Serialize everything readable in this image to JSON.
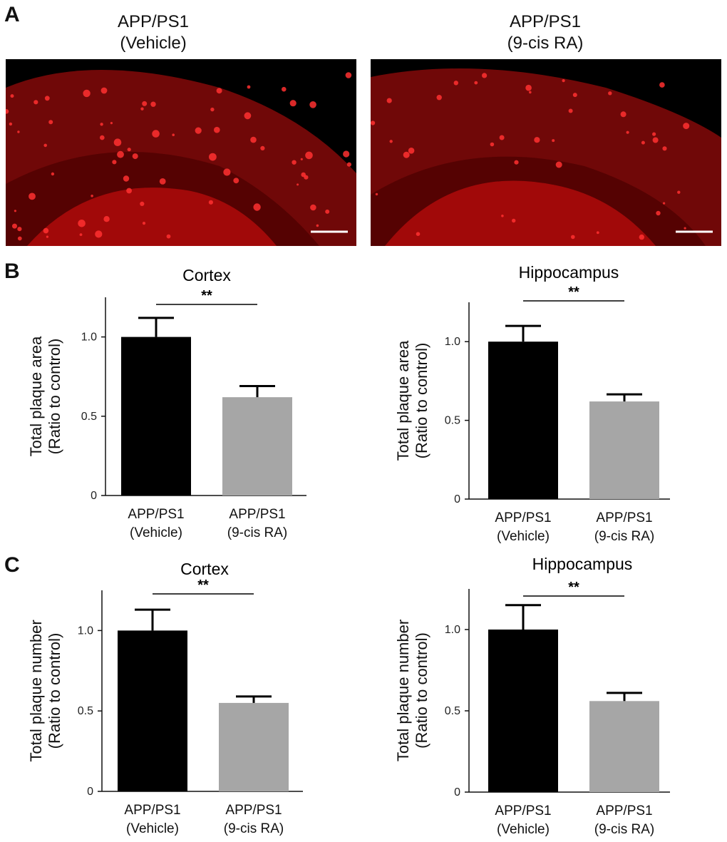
{
  "panel_labels": {
    "a": "A",
    "b": "B",
    "c": "C"
  },
  "images": [
    {
      "title_line1": "APP/PS1",
      "title_line2": "(Vehicle)",
      "stain_color": "#e01010"
    },
    {
      "title_line1": "APP/PS1",
      "title_line2": "(9-cis RA)",
      "stain_color": "#e01010"
    }
  ],
  "colors": {
    "vehicle": "#000000",
    "treatment": "#a6a6a6",
    "axis": "#111111"
  },
  "chart_data": [
    {
      "type": "bar",
      "title": "Cortex",
      "ylabel_line1": "Total plaque area",
      "ylabel_line2": "(Ratio to control)",
      "categories": [
        [
          "APP/PS1",
          "(Vehicle)"
        ],
        [
          "APP/PS1",
          "(9-cis RA)"
        ]
      ],
      "values": [
        1.0,
        0.62
      ],
      "errors": [
        0.12,
        0.07
      ],
      "ylim": [
        0,
        1.25
      ],
      "yticks": [
        0,
        0.5,
        1.0
      ],
      "ytick_labels": [
        "0",
        "0.5",
        "1.0"
      ],
      "significance": "**"
    },
    {
      "type": "bar",
      "title": "Hippocampus",
      "ylabel_line1": "Total plaque area",
      "ylabel_line2": "(Ratio to control)",
      "categories": [
        [
          "APP/PS1",
          "(Vehicle)"
        ],
        [
          "APP/PS1",
          "(9-cis RA)"
        ]
      ],
      "values": [
        1.0,
        0.62
      ],
      "errors": [
        0.1,
        0.045
      ],
      "ylim": [
        0,
        1.25
      ],
      "yticks": [
        0,
        0.5,
        1.0
      ],
      "ytick_labels": [
        "0",
        "0.5",
        "1.0"
      ],
      "significance": "**"
    },
    {
      "type": "bar",
      "title": "Cortex",
      "ylabel_line1": "Total plaque number",
      "ylabel_line2": "(Ratio to control)",
      "categories": [
        [
          "APP/PS1",
          "(Vehicle)"
        ],
        [
          "APP/PS1",
          "(9-cis RA)"
        ]
      ],
      "values": [
        1.0,
        0.55
      ],
      "errors": [
        0.13,
        0.04
      ],
      "ylim": [
        0,
        1.25
      ],
      "yticks": [
        0,
        0.5,
        1.0
      ],
      "ytick_labels": [
        "0",
        "0.5",
        "1.0"
      ],
      "significance": "**"
    },
    {
      "type": "bar",
      "title": "Hippocampus",
      "ylabel_line1": "Total plaque number",
      "ylabel_line2": "(Ratio to control)",
      "categories": [
        [
          "APP/PS1",
          "(Vehicle)"
        ],
        [
          "APP/PS1",
          "(9-cis RA)"
        ]
      ],
      "values": [
        1.0,
        0.56
      ],
      "errors": [
        0.15,
        0.05
      ],
      "ylim": [
        0,
        1.25
      ],
      "yticks": [
        0,
        0.5,
        1.0
      ],
      "ytick_labels": [
        "0",
        "0.5",
        "1.0"
      ],
      "significance": "**"
    }
  ]
}
